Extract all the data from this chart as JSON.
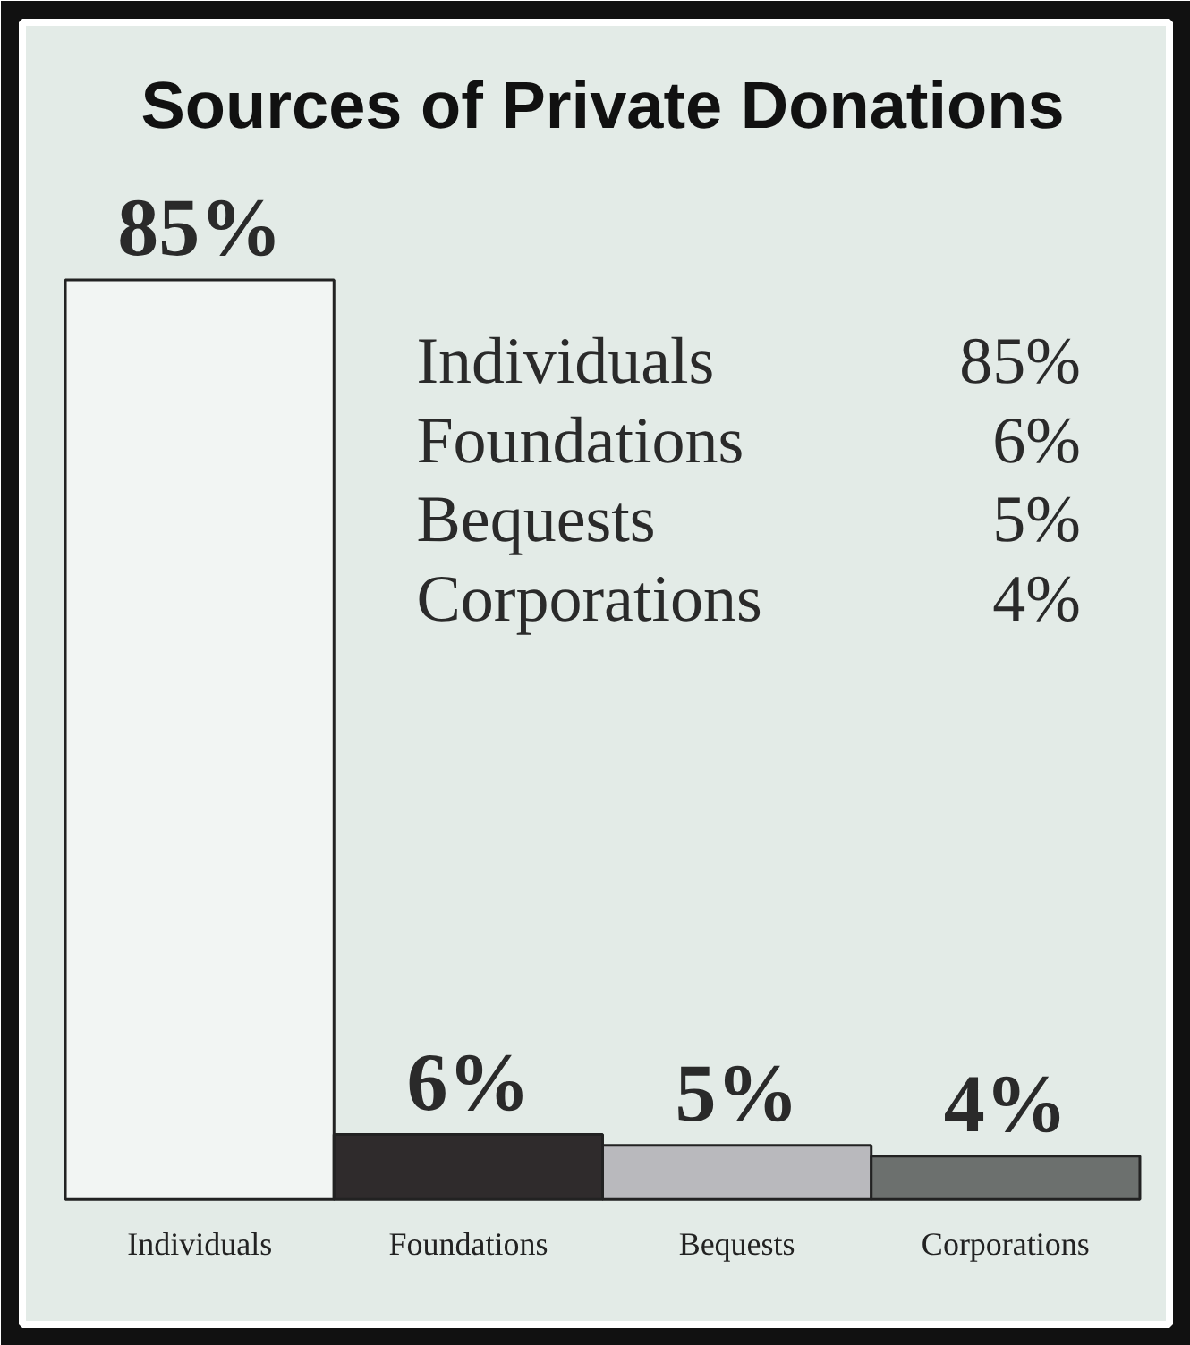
{
  "chart_data": {
    "type": "bar",
    "title": "Sources of Private Donations",
    "categories": [
      "Individuals",
      "Foundations",
      "Bequests",
      "Corporations"
    ],
    "values": [
      85,
      6,
      5,
      4
    ],
    "colors": [
      "#f2f5f3",
      "#2f2b2c",
      "#b9b9bd",
      "#6c706e"
    ],
    "data_labels": true,
    "value_labels": [
      "85%",
      "6%",
      "5%",
      "4%"
    ]
  }
}
